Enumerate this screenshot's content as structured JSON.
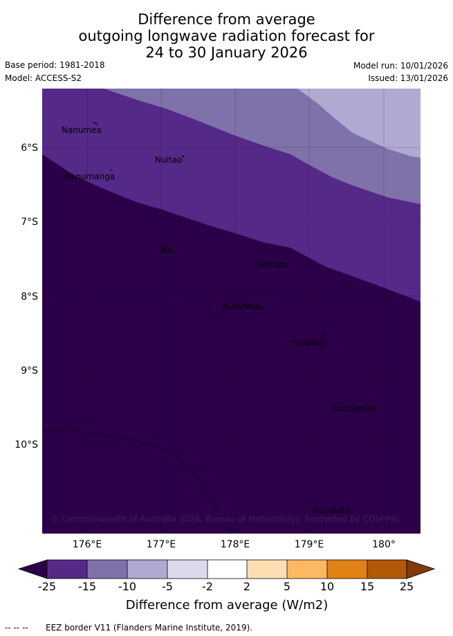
{
  "title": {
    "line1": "Difference from average",
    "line2": "outgoing longwave radiation forecast for",
    "line3": "24 to 30 January 2026"
  },
  "meta": {
    "base_period": "Base period: 1981-2018",
    "model": "Model: ACCESS-S2",
    "model_run": "Model run: 10/01/2026",
    "issued": "Issued: 13/01/2026"
  },
  "map": {
    "lat_ticks": [
      "6°S",
      "7°S",
      "8°S",
      "9°S",
      "10°S"
    ],
    "lon_ticks": [
      "176°E",
      "177°E",
      "178°E",
      "179°E",
      "180°"
    ],
    "places": [
      {
        "name": "Nanumea"
      },
      {
        "name": "Nuitao"
      },
      {
        "name": "Nanumanga"
      },
      {
        "name": "Niu"
      },
      {
        "name": "Vaitupu"
      },
      {
        "name": "Nukufetau"
      },
      {
        "name": "Funafuti"
      },
      {
        "name": "Nukulaelae"
      },
      {
        "name": "Nuilakita"
      }
    ],
    "copyright": "© Commonwealth of Australia 2026, Bureau of Meteorology. Supported by COSPPac"
  },
  "legend": {
    "tick_labels": [
      "-25",
      "-15",
      "-10",
      "-5",
      "-2",
      "2",
      "5",
      "10",
      "15",
      "25"
    ],
    "title": "Difference from average (W/m2)",
    "colors": [
      "#2c0049",
      "#552988",
      "#7f72aa",
      "#b0a9d1",
      "#dadaeb",
      "#ffffff",
      "#fddeb3",
      "#fdb863",
      "#e08214",
      "#b35806",
      "#7f3b08"
    ]
  },
  "footer": {
    "eez_marker": "--  --  --",
    "eez_text": "EEZ border V11 (Flanders Marine Institute, 2019)."
  }
}
